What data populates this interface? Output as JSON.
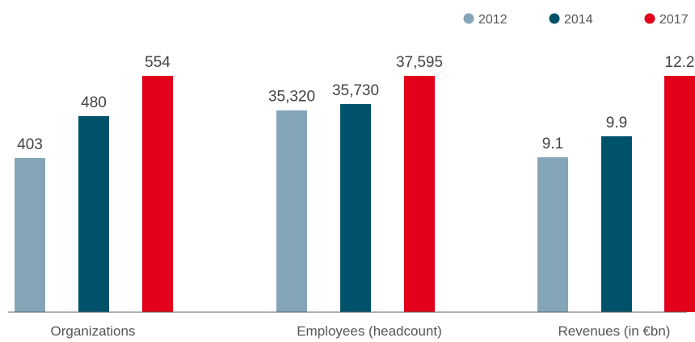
{
  "chart_data": {
    "type": "bar",
    "categories": [
      "Organizations",
      "Employees (headcount)",
      "Revenues (in €bn)"
    ],
    "series": [
      {
        "name": "2012",
        "color": "#84a5b8",
        "values": [
          403,
          35320,
          9.1
        ],
        "labels": [
          "403",
          "35,320",
          "9.1"
        ]
      },
      {
        "name": "2014",
        "color": "#00526b",
        "values": [
          480,
          35730,
          9.9
        ],
        "labels": [
          "480",
          "35,730",
          "9.9"
        ]
      },
      {
        "name": "2017",
        "color": "#e2001a",
        "values": [
          554,
          37595,
          12.2
        ],
        "labels": [
          "554",
          "37,595",
          "12.2"
        ]
      }
    ],
    "legend_position": "top-right",
    "grid": false,
    "axis_color": "#666666",
    "note": ""
  }
}
